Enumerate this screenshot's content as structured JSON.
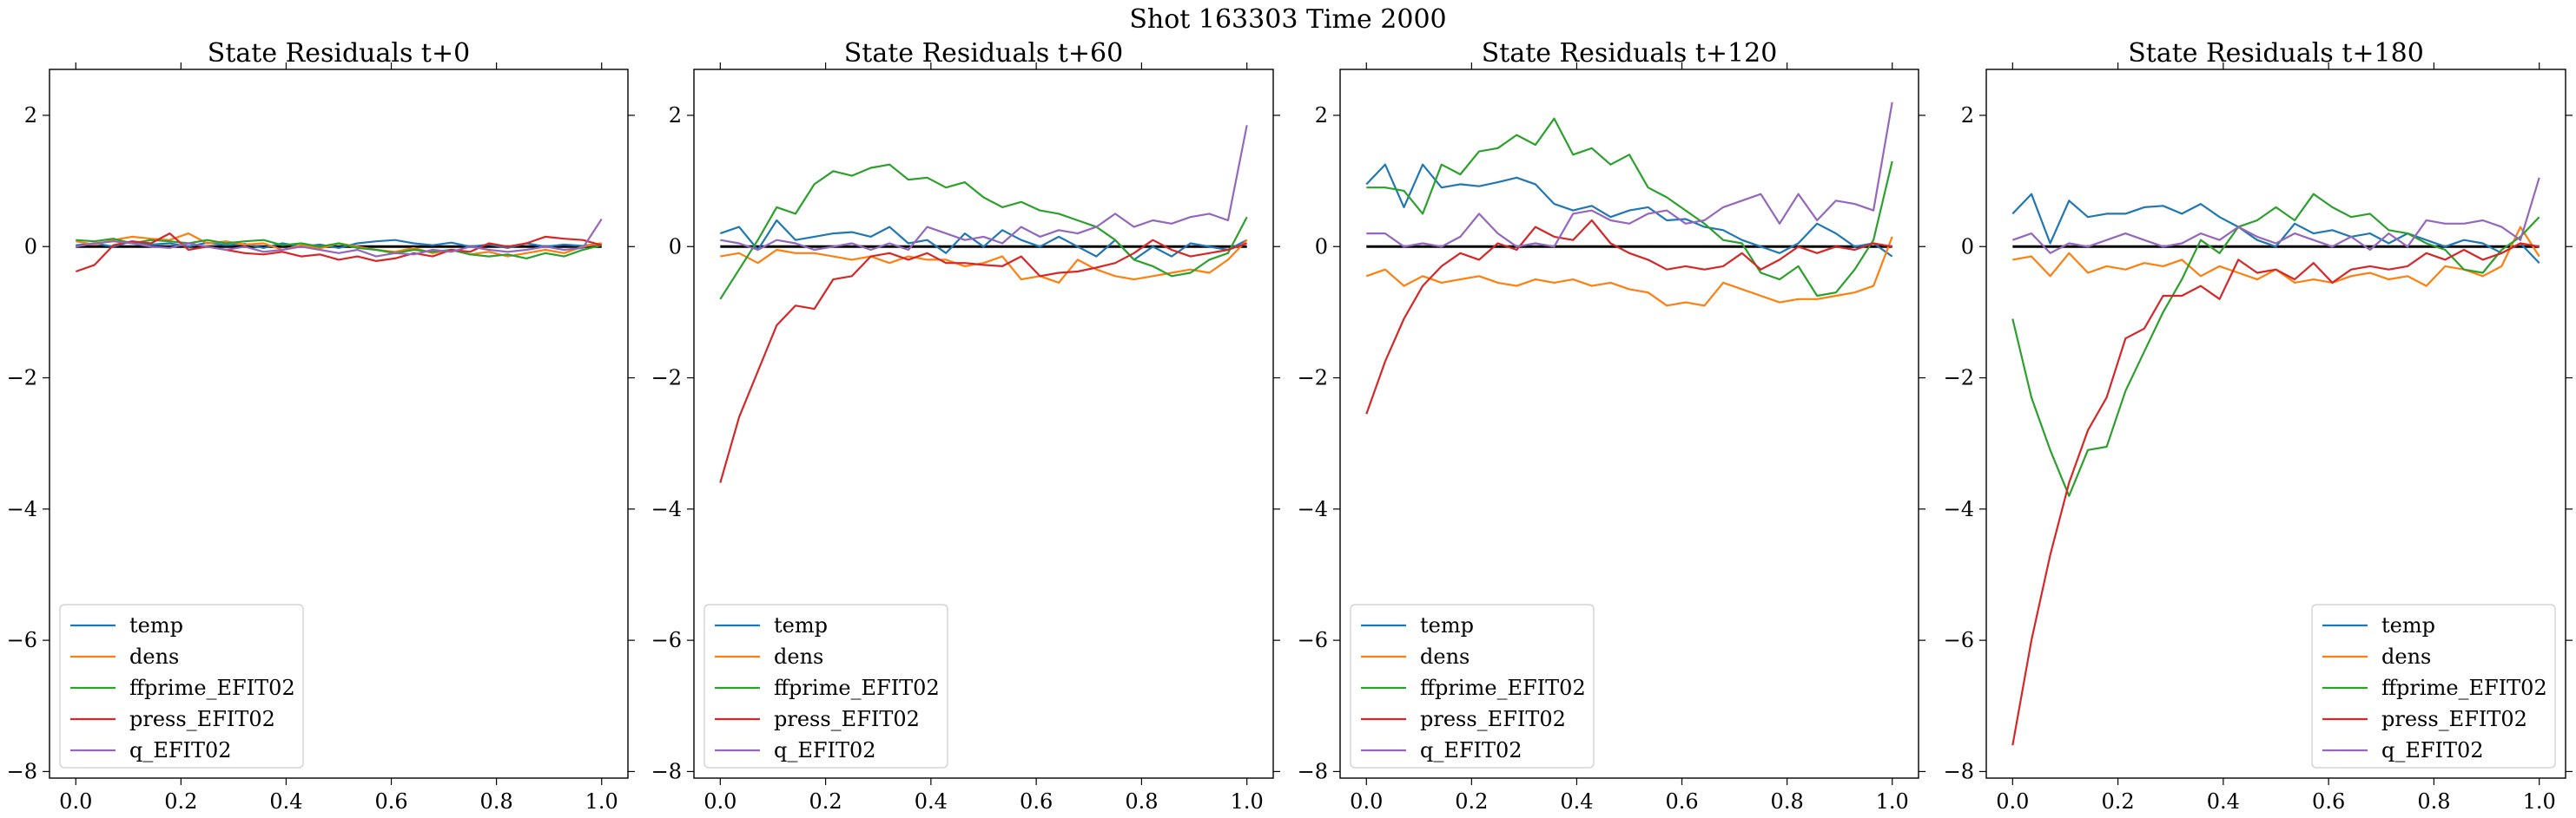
{
  "figure": {
    "suptitle": "Shot 163303   Time 2000"
  },
  "chart_data": [
    {
      "type": "line",
      "title": "State Residuals t+0",
      "xlim": [
        -0.05,
        1.05
      ],
      "ylim": [
        -8.1,
        2.7
      ],
      "xticks": [
        0.0,
        0.2,
        0.4,
        0.6,
        0.8,
        1.0
      ],
      "xtick_labels": [
        "0.0",
        "0.2",
        "0.4",
        "0.6",
        "0.8",
        "1.0"
      ],
      "yticks": [
        -8,
        -6,
        -4,
        -2,
        0,
        2
      ],
      "ytick_labels": [
        "−8",
        "−6",
        "−4",
        "−2",
        "0",
        "2"
      ],
      "legend_loc": "lower-left",
      "x": [
        0.0,
        0.0357,
        0.0714,
        0.1071,
        0.1429,
        0.1786,
        0.2143,
        0.25,
        0.2857,
        0.3214,
        0.3571,
        0.3929,
        0.4286,
        0.4643,
        0.5,
        0.5357,
        0.5714,
        0.6071,
        0.6429,
        0.6786,
        0.7143,
        0.75,
        0.7857,
        0.8214,
        0.8571,
        0.8929,
        0.9286,
        0.9643,
        1.0
      ],
      "series": [
        {
          "name": "temp",
          "color": "#1f77b4",
          "values": [
            0.02,
            0.05,
            0.0,
            0.08,
            0.03,
            0.05,
            0.0,
            0.06,
            0.02,
            0.04,
            -0.02,
            0.05,
            0.0,
            0.03,
            -0.02,
            0.05,
            0.08,
            0.1,
            0.05,
            0.02,
            0.06,
            0.0,
            0.03,
            -0.02,
            0.05,
            0.0,
            0.03,
            0.01,
            0.05
          ]
        },
        {
          "name": "dens",
          "color": "#ff7f0e",
          "values": [
            0.08,
            0.03,
            0.1,
            0.15,
            0.12,
            0.1,
            0.2,
            0.05,
            0.08,
            0.03,
            0.05,
            -0.05,
            0.02,
            -0.03,
            0.05,
            0.0,
            -0.05,
            -0.08,
            -0.02,
            -0.1,
            -0.05,
            -0.12,
            -0.08,
            -0.15,
            -0.1,
            -0.05,
            -0.1,
            0.0,
            0.05
          ]
        },
        {
          "name": "ffprime_EFIT02",
          "color": "#2ca02c",
          "values": [
            0.1,
            0.08,
            0.12,
            0.05,
            0.1,
            0.08,
            0.05,
            0.1,
            0.05,
            0.08,
            0.1,
            0.02,
            0.05,
            0.0,
            0.05,
            -0.02,
            -0.05,
            -0.1,
            -0.05,
            -0.08,
            -0.05,
            -0.12,
            -0.15,
            -0.12,
            -0.18,
            -0.1,
            -0.15,
            -0.05,
            0.02
          ]
        },
        {
          "name": "press_EFIT02",
          "color": "#d62728",
          "values": [
            -0.38,
            -0.28,
            0.02,
            0.08,
            0.05,
            0.2,
            -0.05,
            0.0,
            -0.05,
            -0.1,
            -0.12,
            -0.08,
            -0.15,
            -0.12,
            -0.2,
            -0.15,
            -0.22,
            -0.18,
            -0.1,
            -0.15,
            -0.05,
            -0.08,
            0.05,
            0.0,
            0.05,
            0.15,
            0.12,
            0.1,
            0.02
          ]
        },
        {
          "name": "q_EFIT02",
          "color": "#9467bd",
          "values": [
            0.0,
            0.05,
            0.08,
            0.05,
            0.0,
            -0.02,
            0.05,
            0.0,
            -0.05,
            0.0,
            -0.08,
            -0.05,
            0.0,
            -0.05,
            -0.1,
            -0.05,
            -0.15,
            -0.1,
            -0.12,
            -0.05,
            -0.08,
            0.0,
            -0.05,
            -0.08,
            -0.05,
            0.0,
            -0.05,
            -0.02,
            0.42
          ]
        }
      ]
    },
    {
      "type": "line",
      "title": "State Residuals t+60",
      "xlim": [
        -0.05,
        1.05
      ],
      "ylim": [
        -8.1,
        2.7
      ],
      "xticks": [
        0.0,
        0.2,
        0.4,
        0.6,
        0.8,
        1.0
      ],
      "xtick_labels": [
        "0.0",
        "0.2",
        "0.4",
        "0.6",
        "0.8",
        "1.0"
      ],
      "yticks": [
        -8,
        -6,
        -4,
        -2,
        0,
        2
      ],
      "ytick_labels": [
        "−8",
        "−6",
        "−4",
        "−2",
        "0",
        "2"
      ],
      "legend_loc": "lower-left",
      "x": [
        0.0,
        0.0357,
        0.0714,
        0.1071,
        0.1429,
        0.1786,
        0.2143,
        0.25,
        0.2857,
        0.3214,
        0.3571,
        0.3929,
        0.4286,
        0.4643,
        0.5,
        0.5357,
        0.5714,
        0.6071,
        0.6429,
        0.6786,
        0.7143,
        0.75,
        0.7857,
        0.8214,
        0.8571,
        0.8929,
        0.9286,
        0.9643,
        1.0
      ],
      "series": [
        {
          "name": "temp",
          "color": "#1f77b4",
          "values": [
            0.2,
            0.3,
            -0.05,
            0.4,
            0.1,
            0.15,
            0.2,
            0.22,
            0.15,
            0.3,
            0.05,
            0.1,
            -0.1,
            0.2,
            0.0,
            0.25,
            0.1,
            0.0,
            0.15,
            0.0,
            -0.15,
            0.1,
            -0.2,
            0.0,
            -0.15,
            0.05,
            0.0,
            -0.05,
            0.1
          ]
        },
        {
          "name": "dens",
          "color": "#ff7f0e",
          "values": [
            -0.15,
            -0.1,
            -0.25,
            -0.05,
            -0.1,
            -0.1,
            -0.15,
            -0.2,
            -0.15,
            -0.25,
            -0.15,
            -0.2,
            -0.2,
            -0.3,
            -0.25,
            -0.15,
            -0.5,
            -0.45,
            -0.55,
            -0.2,
            -0.35,
            -0.45,
            -0.5,
            -0.45,
            -0.4,
            -0.35,
            -0.4,
            -0.2,
            0.1
          ]
        },
        {
          "name": "ffprime_EFIT02",
          "color": "#2ca02c",
          "values": [
            -0.8,
            -0.35,
            0.1,
            0.6,
            0.5,
            0.95,
            1.15,
            1.08,
            1.2,
            1.25,
            1.02,
            1.05,
            0.9,
            0.98,
            0.75,
            0.6,
            0.68,
            0.55,
            0.5,
            0.4,
            0.3,
            0.1,
            -0.2,
            -0.3,
            -0.45,
            -0.4,
            -0.2,
            -0.1,
            0.45
          ]
        },
        {
          "name": "press_EFIT02",
          "color": "#d62728",
          "values": [
            -3.6,
            -2.6,
            -1.9,
            -1.2,
            -0.9,
            -0.95,
            -0.5,
            -0.45,
            -0.15,
            -0.1,
            -0.2,
            -0.1,
            -0.25,
            -0.25,
            -0.28,
            -0.3,
            -0.15,
            -0.45,
            -0.4,
            -0.38,
            -0.32,
            -0.25,
            -0.1,
            0.1,
            -0.05,
            -0.15,
            -0.1,
            -0.05,
            0.05
          ]
        },
        {
          "name": "q_EFIT02",
          "color": "#9467bd",
          "values": [
            0.1,
            0.05,
            -0.05,
            0.1,
            0.05,
            -0.05,
            0.0,
            0.05,
            -0.05,
            0.05,
            -0.05,
            0.3,
            0.2,
            0.1,
            0.15,
            0.05,
            0.3,
            0.15,
            0.25,
            0.2,
            0.3,
            0.5,
            0.3,
            0.4,
            0.35,
            0.45,
            0.5,
            0.4,
            1.85
          ]
        }
      ]
    },
    {
      "type": "line",
      "title": "State Residuals t+120",
      "xlim": [
        -0.05,
        1.05
      ],
      "ylim": [
        -8.1,
        2.7
      ],
      "xticks": [
        0.0,
        0.2,
        0.4,
        0.6,
        0.8,
        1.0
      ],
      "xtick_labels": [
        "0.0",
        "0.2",
        "0.4",
        "0.6",
        "0.8",
        "1.0"
      ],
      "yticks": [
        -8,
        -6,
        -4,
        -2,
        0,
        2
      ],
      "ytick_labels": [
        "−8",
        "−6",
        "−4",
        "−2",
        "0",
        "2"
      ],
      "legend_loc": "lower-left",
      "x": [
        0.0,
        0.0357,
        0.0714,
        0.1071,
        0.1429,
        0.1786,
        0.2143,
        0.25,
        0.2857,
        0.3214,
        0.3571,
        0.3929,
        0.4286,
        0.4643,
        0.5,
        0.5357,
        0.5714,
        0.6071,
        0.6429,
        0.6786,
        0.7143,
        0.75,
        0.7857,
        0.8214,
        0.8571,
        0.8929,
        0.9286,
        0.9643,
        1.0
      ],
      "series": [
        {
          "name": "temp",
          "color": "#1f77b4",
          "values": [
            0.95,
            1.25,
            0.6,
            1.25,
            0.9,
            0.95,
            0.92,
            0.98,
            1.05,
            0.95,
            0.65,
            0.55,
            0.62,
            0.45,
            0.55,
            0.6,
            0.4,
            0.42,
            0.3,
            0.25,
            0.1,
            0.0,
            -0.1,
            0.05,
            0.35,
            0.2,
            0.0,
            0.05,
            -0.15
          ]
        },
        {
          "name": "dens",
          "color": "#ff7f0e",
          "values": [
            -0.45,
            -0.35,
            -0.6,
            -0.45,
            -0.55,
            -0.5,
            -0.45,
            -0.55,
            -0.6,
            -0.5,
            -0.55,
            -0.5,
            -0.6,
            -0.55,
            -0.65,
            -0.7,
            -0.9,
            -0.85,
            -0.9,
            -0.55,
            -0.65,
            -0.75,
            -0.85,
            -0.8,
            -0.8,
            -0.75,
            -0.7,
            -0.6,
            0.15
          ]
        },
        {
          "name": "ffprime_EFIT02",
          "color": "#2ca02c",
          "values": [
            0.9,
            0.9,
            0.85,
            0.5,
            1.25,
            1.1,
            1.45,
            1.5,
            1.7,
            1.55,
            1.95,
            1.4,
            1.5,
            1.25,
            1.4,
            0.9,
            0.75,
            0.55,
            0.35,
            0.1,
            0.05,
            -0.4,
            -0.5,
            -0.3,
            -0.75,
            -0.7,
            -0.35,
            0.1,
            1.3
          ]
        },
        {
          "name": "press_EFIT02",
          "color": "#d62728",
          "values": [
            -2.55,
            -1.75,
            -1.1,
            -0.6,
            -0.3,
            -0.1,
            -0.2,
            0.05,
            -0.05,
            0.3,
            0.15,
            0.1,
            0.4,
            0.05,
            -0.1,
            -0.2,
            -0.35,
            -0.3,
            -0.35,
            -0.3,
            -0.1,
            -0.35,
            -0.2,
            0.0,
            -0.1,
            0.0,
            -0.05,
            0.05,
            0.0
          ]
        },
        {
          "name": "q_EFIT02",
          "color": "#9467bd",
          "values": [
            0.2,
            0.2,
            0.0,
            0.05,
            0.0,
            0.15,
            0.5,
            0.2,
            0.0,
            0.05,
            0.0,
            0.5,
            0.55,
            0.4,
            0.35,
            0.5,
            0.55,
            0.35,
            0.4,
            0.6,
            0.7,
            0.8,
            0.35,
            0.8,
            0.4,
            0.7,
            0.65,
            0.55,
            2.2
          ]
        }
      ]
    },
    {
      "type": "line",
      "title": "State Residuals t+180",
      "xlim": [
        -0.05,
        1.05
      ],
      "ylim": [
        -8.1,
        2.7
      ],
      "xticks": [
        0.0,
        0.2,
        0.4,
        0.6,
        0.8,
        1.0
      ],
      "xtick_labels": [
        "0.0",
        "0.2",
        "0.4",
        "0.6",
        "0.8",
        "1.0"
      ],
      "yticks": [
        -8,
        -6,
        -4,
        -2,
        0,
        2
      ],
      "ytick_labels": [
        "−8",
        "−6",
        "−4",
        "−2",
        "0",
        "2"
      ],
      "legend_loc": "lower-right",
      "x": [
        0.0,
        0.0357,
        0.0714,
        0.1071,
        0.1429,
        0.1786,
        0.2143,
        0.25,
        0.2857,
        0.3214,
        0.3571,
        0.3929,
        0.4286,
        0.4643,
        0.5,
        0.5357,
        0.5714,
        0.6071,
        0.6429,
        0.6786,
        0.7143,
        0.75,
        0.7857,
        0.8214,
        0.8571,
        0.8929,
        0.9286,
        0.9643,
        1.0
      ],
      "series": [
        {
          "name": "temp",
          "color": "#1f77b4",
          "values": [
            0.5,
            0.8,
            0.05,
            0.7,
            0.45,
            0.5,
            0.5,
            0.6,
            0.62,
            0.5,
            0.65,
            0.45,
            0.3,
            0.1,
            0.0,
            0.35,
            0.2,
            0.25,
            0.15,
            0.2,
            0.05,
            0.2,
            0.1,
            0.0,
            0.1,
            0.05,
            -0.1,
            0.05,
            -0.25
          ]
        },
        {
          "name": "dens",
          "color": "#ff7f0e",
          "values": [
            -0.2,
            -0.15,
            -0.45,
            -0.1,
            -0.4,
            -0.3,
            -0.35,
            -0.25,
            -0.3,
            -0.2,
            -0.45,
            -0.3,
            -0.4,
            -0.5,
            -0.35,
            -0.55,
            -0.5,
            -0.55,
            -0.45,
            -0.4,
            -0.5,
            -0.45,
            -0.6,
            -0.3,
            -0.35,
            -0.45,
            -0.3,
            0.3,
            -0.15
          ]
        },
        {
          "name": "ffprime_EFIT02",
          "color": "#2ca02c",
          "values": [
            -1.1,
            -2.3,
            -3.1,
            -3.8,
            -3.1,
            -3.05,
            -2.2,
            -1.6,
            -1.0,
            -0.5,
            0.1,
            -0.1,
            0.3,
            0.4,
            0.6,
            0.4,
            0.8,
            0.6,
            0.45,
            0.5,
            0.25,
            0.2,
            0.05,
            -0.05,
            -0.35,
            -0.4,
            -0.05,
            0.15,
            0.45
          ]
        },
        {
          "name": "press_EFIT02",
          "color": "#d62728",
          "values": [
            -7.6,
            -6.0,
            -4.7,
            -3.6,
            -2.8,
            -2.3,
            -1.4,
            -1.25,
            -0.75,
            -0.75,
            -0.6,
            -0.8,
            -0.2,
            -0.4,
            -0.35,
            -0.5,
            -0.25,
            -0.55,
            -0.35,
            -0.3,
            -0.35,
            -0.3,
            -0.1,
            -0.2,
            -0.05,
            -0.2,
            -0.1,
            0.05,
            0.0
          ]
        },
        {
          "name": "q_EFIT02",
          "color": "#9467bd",
          "values": [
            0.1,
            0.2,
            -0.1,
            0.05,
            0.0,
            0.1,
            0.2,
            0.1,
            0.0,
            0.05,
            0.2,
            0.1,
            0.3,
            0.15,
            0.05,
            0.2,
            0.1,
            0.0,
            0.15,
            -0.05,
            0.2,
            0.0,
            0.4,
            0.35,
            0.35,
            0.4,
            0.3,
            0.1,
            1.05
          ]
        }
      ]
    }
  ]
}
